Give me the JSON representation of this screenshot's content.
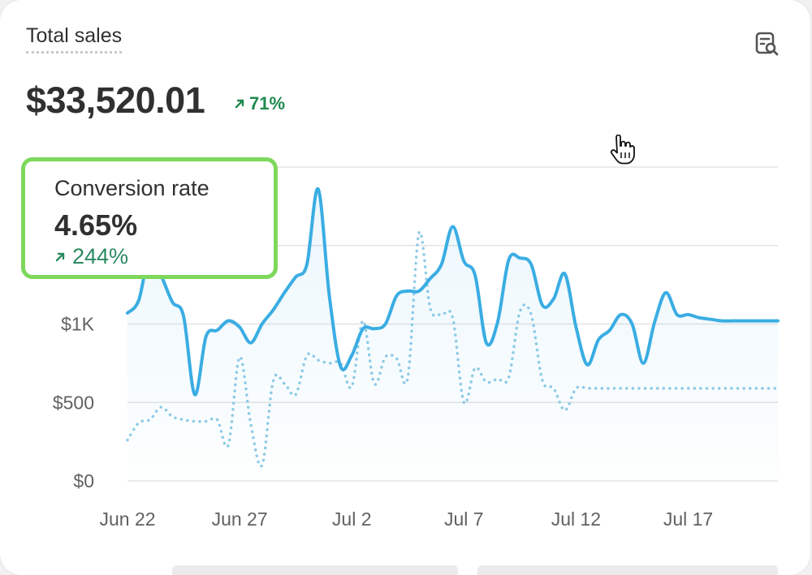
{
  "card": {
    "title": "Total sales",
    "total": "$33,520.01",
    "total_change": "71%"
  },
  "tooltip": {
    "label": "Conversion rate",
    "value": "4.65%",
    "change": "244%"
  },
  "chart_data": {
    "type": "line",
    "y_ticks": [
      {
        "value": 0,
        "label": "$0"
      },
      {
        "value": 500,
        "label": "$500"
      },
      {
        "value": 1000,
        "label": "$1K"
      },
      {
        "value": 1500,
        "label": ""
      },
      {
        "value": 2000,
        "label": ""
      }
    ],
    "ylim": [
      0,
      2000
    ],
    "x_ticks": [
      {
        "x": 0,
        "label": "Jun 22"
      },
      {
        "x": 5,
        "label": "Jun 27"
      },
      {
        "x": 10,
        "label": "Jul 2"
      },
      {
        "x": 15,
        "label": "Jul 7"
      },
      {
        "x": 20,
        "label": "Jul 12"
      },
      {
        "x": 25,
        "label": "Jul 17"
      }
    ],
    "xlim": [
      0,
      29
    ],
    "grid": true,
    "colors": {
      "current": "#3aade3",
      "previous": "#90cbe6",
      "positive": "#1e8a4f",
      "tooltip_border": "#7dd85b"
    },
    "series": [
      {
        "style": "solid",
        "x": [
          0,
          0.5,
          1,
          1.5,
          2,
          2.5,
          3,
          3.5,
          4,
          4.5,
          5,
          5.5,
          6,
          6.5,
          7,
          7.5,
          8,
          8.5,
          9,
          9.5,
          10,
          10.5,
          11,
          11.5,
          12,
          12.5,
          13,
          13.5,
          14,
          14.5,
          15,
          15.5,
          16,
          16.5,
          17,
          17.5,
          18,
          18.5,
          19,
          19.5,
          20,
          20.5,
          21,
          21.5,
          22,
          22.5,
          23,
          23.5,
          24,
          24.5,
          25,
          25.5,
          26,
          26.5,
          27,
          27.5,
          28,
          28.5,
          29
        ],
        "values": [
          1070,
          1150,
          1450,
          1310,
          1140,
          1050,
          550,
          920,
          960,
          1020,
          980,
          880,
          1000,
          1090,
          1200,
          1300,
          1380,
          1860,
          1180,
          730,
          800,
          970,
          970,
          1000,
          1180,
          1210,
          1210,
          1290,
          1380,
          1620,
          1400,
          1310,
          880,
          1010,
          1410,
          1420,
          1380,
          1120,
          1160,
          1320,
          980,
          740,
          900,
          960,
          1060,
          1000,
          750,
          1010,
          1200,
          1060,
          1060,
          1040,
          1030,
          1020,
          1020,
          1020,
          1020,
          1020,
          1020
        ]
      },
      {
        "style": "dotted",
        "x": [
          0,
          0.5,
          1,
          1.5,
          2,
          2.5,
          3,
          3.5,
          4,
          4.5,
          5,
          5.5,
          6,
          6.5,
          7,
          7.5,
          8,
          8.5,
          9,
          9.5,
          10,
          10.5,
          11,
          11.5,
          12,
          12.5,
          13,
          13.5,
          14,
          14.5,
          15,
          15.5,
          16,
          16.5,
          17,
          17.5,
          18,
          18.5,
          19,
          19.5,
          20,
          20.5,
          21,
          21.5,
          22,
          22.5,
          23,
          23.5,
          24,
          24.5,
          25,
          25.5,
          26,
          26.5,
          27,
          27.5,
          28,
          28.5,
          29
        ],
        "values": [
          260,
          370,
          390,
          470,
          410,
          390,
          380,
          380,
          390,
          230,
          790,
          360,
          100,
          640,
          620,
          550,
          800,
          770,
          750,
          750,
          600,
          1020,
          620,
          790,
          780,
          660,
          1580,
          1100,
          1060,
          1040,
          500,
          720,
          630,
          650,
          660,
          1080,
          1060,
          640,
          590,
          450,
          590,
          590,
          590,
          590,
          590,
          590,
          590,
          590,
          590,
          590,
          590,
          590,
          590,
          590,
          590,
          590,
          590,
          590,
          590
        ]
      }
    ]
  }
}
